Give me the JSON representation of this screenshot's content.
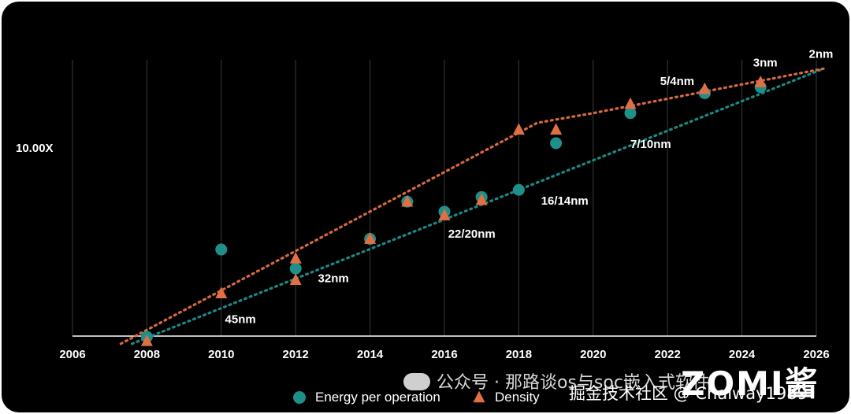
{
  "chart_data": {
    "type": "scatter",
    "title": "",
    "xlabel": "",
    "ylabel": "",
    "xlim": [
      2006,
      2026
    ],
    "x_ticks": [
      "2006",
      "2008",
      "2010",
      "2012",
      "2014",
      "2016",
      "2018",
      "2020",
      "2022",
      "2024",
      "2026"
    ],
    "y_scale": "log",
    "y_tick_labels": [
      "10.00X"
    ],
    "grid": "vertical",
    "legend_position": "bottom-center",
    "series": [
      {
        "name": "Energy per operation",
        "marker": "circle",
        "color": "#1f8f8a",
        "points": [
          {
            "x": 2008,
            "y": 1.0
          },
          {
            "x": 2010,
            "y": 2.9
          },
          {
            "x": 2012,
            "y": 2.3
          },
          {
            "x": 2014,
            "y": 3.3
          },
          {
            "x": 2015,
            "y": 5.2
          },
          {
            "x": 2016,
            "y": 4.6
          },
          {
            "x": 2017,
            "y": 5.5
          },
          {
            "x": 2018,
            "y": 6.0
          },
          {
            "x": 2019,
            "y": 10.6
          },
          {
            "x": 2021,
            "y": 15.3
          },
          {
            "x": 2023,
            "y": 19.5
          },
          {
            "x": 2024.5,
            "y": 21.0
          }
        ],
        "trend": [
          {
            "x": 2007.6,
            "y": 0.92
          },
          {
            "x": 2026.2,
            "y": 26.3
          }
        ]
      },
      {
        "name": "Density",
        "marker": "triangle",
        "color": "#e07043",
        "points": [
          {
            "x": 2008,
            "y": 0.95
          },
          {
            "x": 2010,
            "y": 1.7
          },
          {
            "x": 2012,
            "y": 2.6
          },
          {
            "x": 2012,
            "y": 2.0
          },
          {
            "x": 2014,
            "y": 3.3
          },
          {
            "x": 2015,
            "y": 5.2
          },
          {
            "x": 2016,
            "y": 4.4
          },
          {
            "x": 2017,
            "y": 5.3
          },
          {
            "x": 2018,
            "y": 12.5
          },
          {
            "x": 2019,
            "y": 12.5
          },
          {
            "x": 2021,
            "y": 17.1
          },
          {
            "x": 2023,
            "y": 20.5
          },
          {
            "x": 2024.5,
            "y": 22.3
          }
        ],
        "trend": [
          {
            "x": 2007.3,
            "y": 0.92
          },
          {
            "x": 2018.5,
            "y": 13.6
          },
          {
            "x": 2020,
            "y": 15.3
          },
          {
            "x": 2026.2,
            "y": 26.3
          }
        ]
      }
    ],
    "annotations": [
      {
        "text": "45nm",
        "x": 2010.1,
        "y": 1.18
      },
      {
        "text": "32nm",
        "x": 2012.6,
        "y": 1.95
      },
      {
        "text": "22/20nm",
        "x": 2016.1,
        "y": 3.35
      },
      {
        "text": "16/14nm",
        "x": 2018.6,
        "y": 5.0
      },
      {
        "text": "7/10nm",
        "x": 2021.0,
        "y": 10.0
      },
      {
        "text": "5/4nm",
        "x": 2021.8,
        "y": 21.5
      },
      {
        "text": "3nm",
        "x": 2024.3,
        "y": 27.0
      },
      {
        "text": "2nm",
        "x": 2025.8,
        "y": 30.0
      }
    ]
  },
  "watermarks": {
    "brand": "公众号 · 那路谈os与soc嵌入式软件",
    "site": "掘金技术社区 @ Chaiway1989",
    "logo": "ZOMI酱"
  }
}
